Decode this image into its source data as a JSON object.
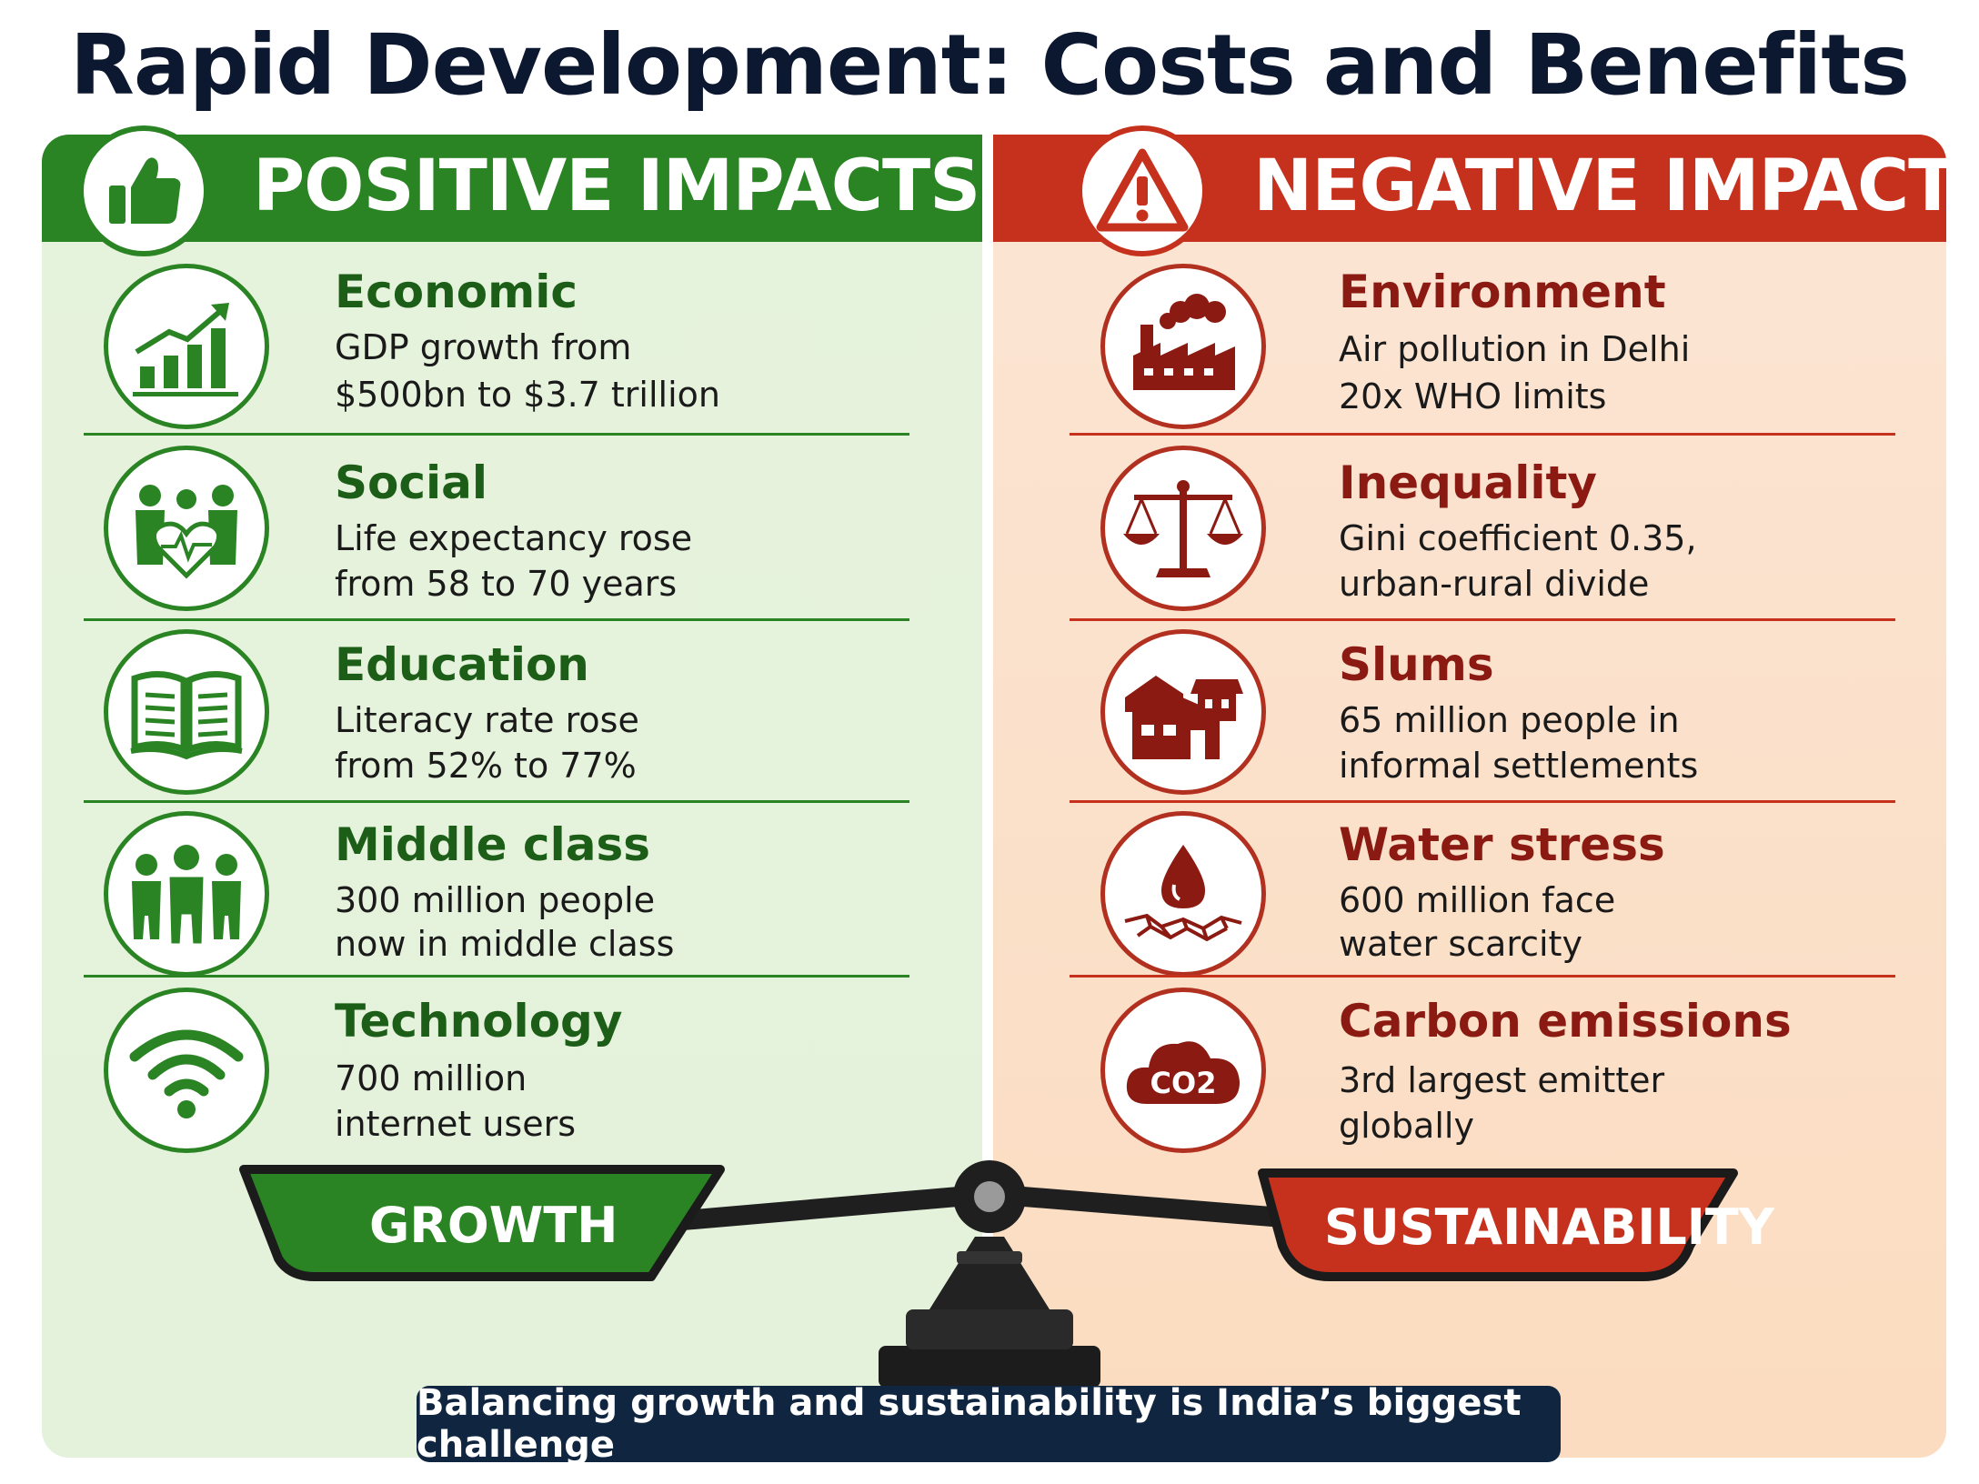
{
  "title": "Rapid Development: Costs and Benefits",
  "positive": {
    "header": "POSITIVE IMPACTS",
    "header_icon": "thumbs-up-icon",
    "color": "#2a8424",
    "items": [
      {
        "category": "Economic",
        "line1": "GDP growth from",
        "line2": "$500bn to $3.7 trillion",
        "icon": "growth-chart-icon"
      },
      {
        "category": "Social",
        "line1": "Life expectancy rose",
        "line2": "from 58 to 70 years",
        "icon": "family-heart-icon"
      },
      {
        "category": "Education",
        "line1": "Literacy rate rose",
        "line2": "from 52% to 77%",
        "icon": "open-book-icon"
      },
      {
        "category": "Middle class",
        "line1": "300 million people",
        "line2": "now in middle class",
        "icon": "people-group-icon"
      },
      {
        "category": "Technology",
        "line1": "700 million",
        "line2": "internet users",
        "icon": "wifi-icon"
      }
    ]
  },
  "negative": {
    "header": "NEGATIVE IMPACTS",
    "header_icon": "warning-icon",
    "color": "#c5311d",
    "items": [
      {
        "category": "Environment",
        "line1": "Air pollution in Delhi",
        "line2": "20x WHO limits",
        "icon": "factory-smoke-icon"
      },
      {
        "category": "Inequality",
        "line1": "Gini coefficient 0.35,",
        "line2": "urban-rural divide",
        "icon": "balance-scale-icon"
      },
      {
        "category": "Slums",
        "line1": "65 million people in",
        "line2": "informal settlements",
        "icon": "slum-houses-icon"
      },
      {
        "category": "Water stress",
        "line1": "600 million face",
        "line2": "water scarcity",
        "icon": "water-drop-cracked-earth-icon"
      },
      {
        "category": "Carbon emissions",
        "line1": "3rd largest emitter",
        "line2": "globally",
        "icon": "co2-cloud-icon",
        "icon_text": "CO2"
      }
    ]
  },
  "scale": {
    "left_pan": "GROWTH",
    "right_pan": "SUSTAINABILITY"
  },
  "footer": "Balancing growth and sustainability is India’s biggest challenge"
}
